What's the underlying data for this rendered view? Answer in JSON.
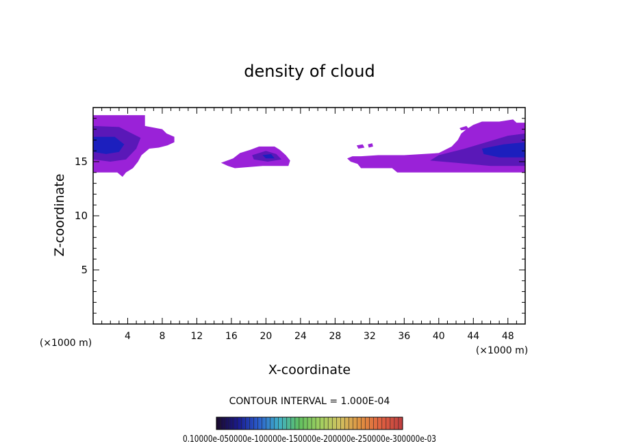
{
  "chart_data": {
    "type": "heatmap",
    "title": "density of cloud",
    "xlabel": "X-coordinate",
    "ylabel": "Z-coordinate",
    "x_unit_left": "(×1000 m)",
    "x_unit_right": "(×1000 m)",
    "xlim": [
      0,
      50
    ],
    "ylim": [
      0,
      20
    ],
    "x_ticks": [
      4,
      8,
      12,
      16,
      20,
      24,
      28,
      32,
      36,
      40,
      44,
      48
    ],
    "y_ticks": [
      5,
      10,
      15
    ],
    "x_minor_step": 1,
    "y_minor_step": 1,
    "contour_note": "CONTOUR INTERVAL = 1.000E-04",
    "colorbar": {
      "labels_text": "0.10000e-050000e-100000e-150000e-200000e-250000e-300000e-03",
      "range": [
        1e-06,
        0.00035
      ],
      "colors": [
        "#1a0a2e",
        "#1a1a8c",
        "#2a5ccc",
        "#40b0c8",
        "#60c060",
        "#a0d060",
        "#d0c060",
        "#e09040",
        "#e06040",
        "#c04040"
      ]
    },
    "cloud_regions": [
      {
        "name": "left",
        "outline": [
          [
            0,
            19.3
          ],
          [
            6,
            19.3
          ],
          [
            6,
            18.3
          ],
          [
            8,
            18.0
          ],
          [
            8.5,
            17.6
          ],
          [
            9.4,
            17.3
          ],
          [
            9.4,
            16.8
          ],
          [
            8.6,
            16.5
          ],
          [
            7.6,
            16.3
          ],
          [
            6.5,
            16.2
          ],
          [
            5.6,
            15.6
          ],
          [
            5.2,
            15.0
          ],
          [
            4.6,
            14.4
          ],
          [
            3.8,
            14.0
          ],
          [
            3.4,
            13.6
          ],
          [
            2.8,
            14.0
          ],
          [
            0,
            14.0
          ]
        ],
        "core": [
          [
            0,
            18.3
          ],
          [
            3,
            18.2
          ],
          [
            5.5,
            17.2
          ],
          [
            5.0,
            16.2
          ],
          [
            3.8,
            15.2
          ],
          [
            2,
            15.0
          ],
          [
            0,
            15.2
          ]
        ],
        "inner": [
          [
            0,
            17.3
          ],
          [
            2.5,
            17.3
          ],
          [
            3.6,
            16.6
          ],
          [
            3,
            15.9
          ],
          [
            1.5,
            15.7
          ],
          [
            0,
            15.9
          ]
        ]
      },
      {
        "name": "middle",
        "outline": [
          [
            14.8,
            14.9
          ],
          [
            16.2,
            15.3
          ],
          [
            17.0,
            15.8
          ],
          [
            18.2,
            16.1
          ],
          [
            19.2,
            16.4
          ],
          [
            21,
            16.4
          ],
          [
            21.6,
            16.1
          ],
          [
            22.3,
            15.6
          ],
          [
            22.8,
            15.1
          ],
          [
            22.6,
            14.6
          ],
          [
            21.4,
            14.6
          ],
          [
            19.6,
            14.6
          ],
          [
            18,
            14.5
          ],
          [
            16.4,
            14.4
          ],
          [
            15.6,
            14.6
          ]
        ],
        "core": [
          [
            18.4,
            15.6
          ],
          [
            20,
            16.0
          ],
          [
            21.2,
            15.7
          ],
          [
            21.8,
            15.2
          ],
          [
            20.2,
            15.0
          ],
          [
            18.6,
            15.2
          ]
        ],
        "inner": [
          [
            19.6,
            15.6
          ],
          [
            20.6,
            15.7
          ],
          [
            21,
            15.3
          ],
          [
            20,
            15.3
          ]
        ]
      },
      {
        "name": "right",
        "outline": [
          [
            29.4,
            15.3
          ],
          [
            30,
            15.5
          ],
          [
            31,
            15.5
          ],
          [
            33,
            15.6
          ],
          [
            36,
            15.6
          ],
          [
            40,
            15.8
          ],
          [
            41.5,
            16.4
          ],
          [
            42.2,
            17.0
          ],
          [
            42.6,
            17.6
          ],
          [
            43.2,
            18.0
          ],
          [
            44,
            18.4
          ],
          [
            45,
            18.7
          ],
          [
            47,
            18.7
          ],
          [
            48.6,
            18.9
          ],
          [
            49,
            18.6
          ],
          [
            50,
            18.6
          ],
          [
            50,
            14.0
          ],
          [
            45,
            14.0
          ],
          [
            38,
            14.0
          ],
          [
            35.2,
            14.0
          ],
          [
            34.6,
            14.4
          ],
          [
            31,
            14.4
          ],
          [
            30.6,
            14.8
          ],
          [
            29.8,
            15.0
          ]
        ],
        "core": [
          [
            40,
            15.6
          ],
          [
            43,
            16.2
          ],
          [
            45.5,
            16.8
          ],
          [
            48,
            17.4
          ],
          [
            50,
            17.6
          ],
          [
            50,
            14.6
          ],
          [
            46,
            14.6
          ],
          [
            42,
            14.9
          ],
          [
            39,
            15.1
          ]
        ],
        "inner": [
          [
            45,
            16.2
          ],
          [
            47.5,
            16.6
          ],
          [
            50,
            16.8
          ],
          [
            50,
            15.4
          ],
          [
            47,
            15.4
          ],
          [
            45.2,
            15.7
          ]
        ]
      }
    ],
    "cloud_flecks": [
      [
        [
          30.5,
          16.5
        ],
        [
          31.2,
          16.6
        ],
        [
          31.4,
          16.3
        ],
        [
          30.7,
          16.2
        ]
      ],
      [
        [
          31.8,
          16.6
        ],
        [
          32.3,
          16.7
        ],
        [
          32.4,
          16.4
        ],
        [
          31.9,
          16.3
        ]
      ],
      [
        [
          42.4,
          18.1
        ],
        [
          43.2,
          18.3
        ],
        [
          43.5,
          18.0
        ],
        [
          42.6,
          17.9
        ]
      ]
    ],
    "cloud_colors": {
      "outline": "#9a22d8",
      "core": "#5a18b8",
      "inner": "#1c1fbe"
    }
  }
}
